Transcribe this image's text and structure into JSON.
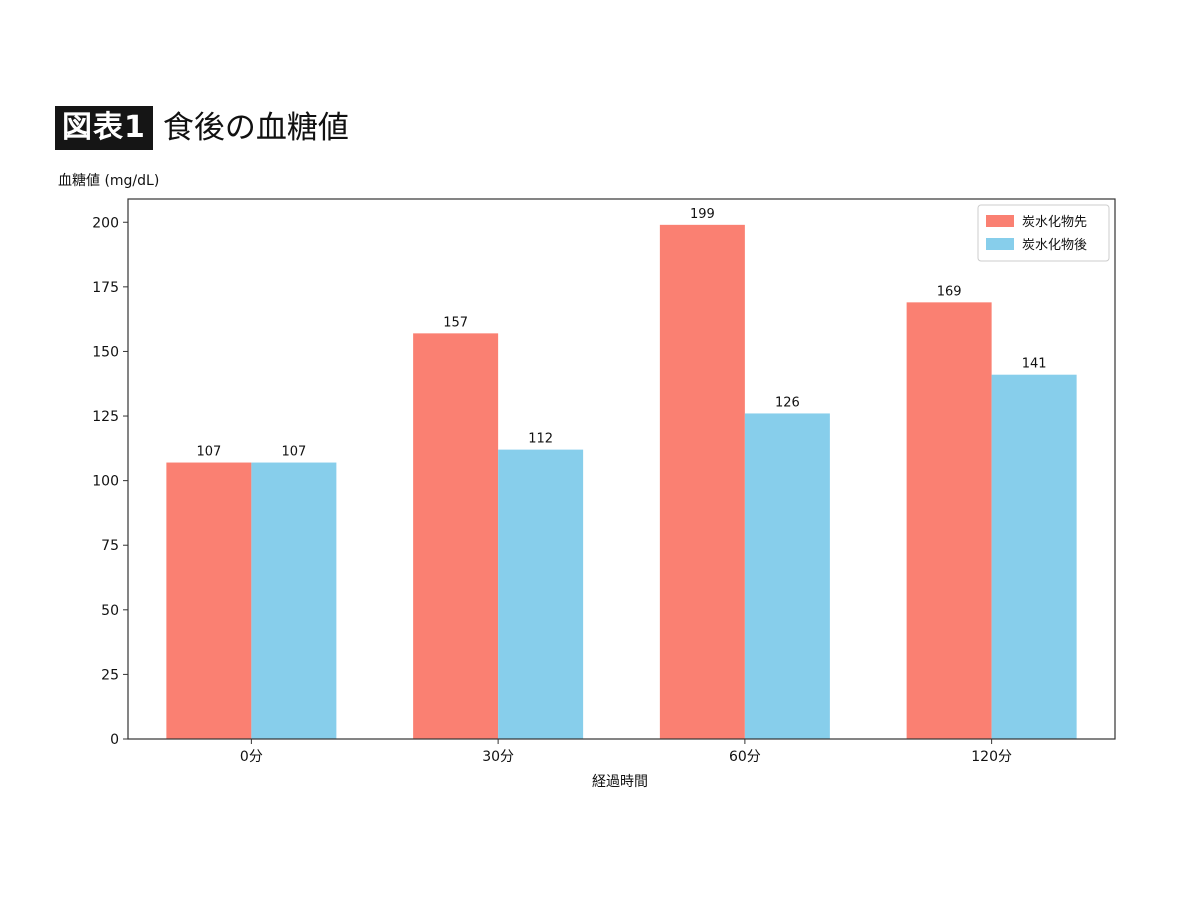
{
  "figure": {
    "badge": "図表1",
    "title": "食後の血糖値"
  },
  "chart_data": {
    "type": "bar",
    "ylabel": "血糖値 (mg/dL)",
    "xlabel": "経過時間",
    "categories": [
      "0分",
      "30分",
      "60分",
      "120分"
    ],
    "series": [
      {
        "name": "炭水化物先",
        "values": [
          107,
          157,
          199,
          169
        ],
        "color": "#fa8072"
      },
      {
        "name": "炭水化物後",
        "values": [
          107,
          112,
          126,
          141
        ],
        "color": "#87ceeb"
      }
    ],
    "ylim": [
      0,
      209
    ],
    "yticks": [
      0,
      25,
      50,
      75,
      100,
      125,
      150,
      175,
      200
    ],
    "data_labels": true,
    "grid": false,
    "legend_position": "top-right"
  }
}
